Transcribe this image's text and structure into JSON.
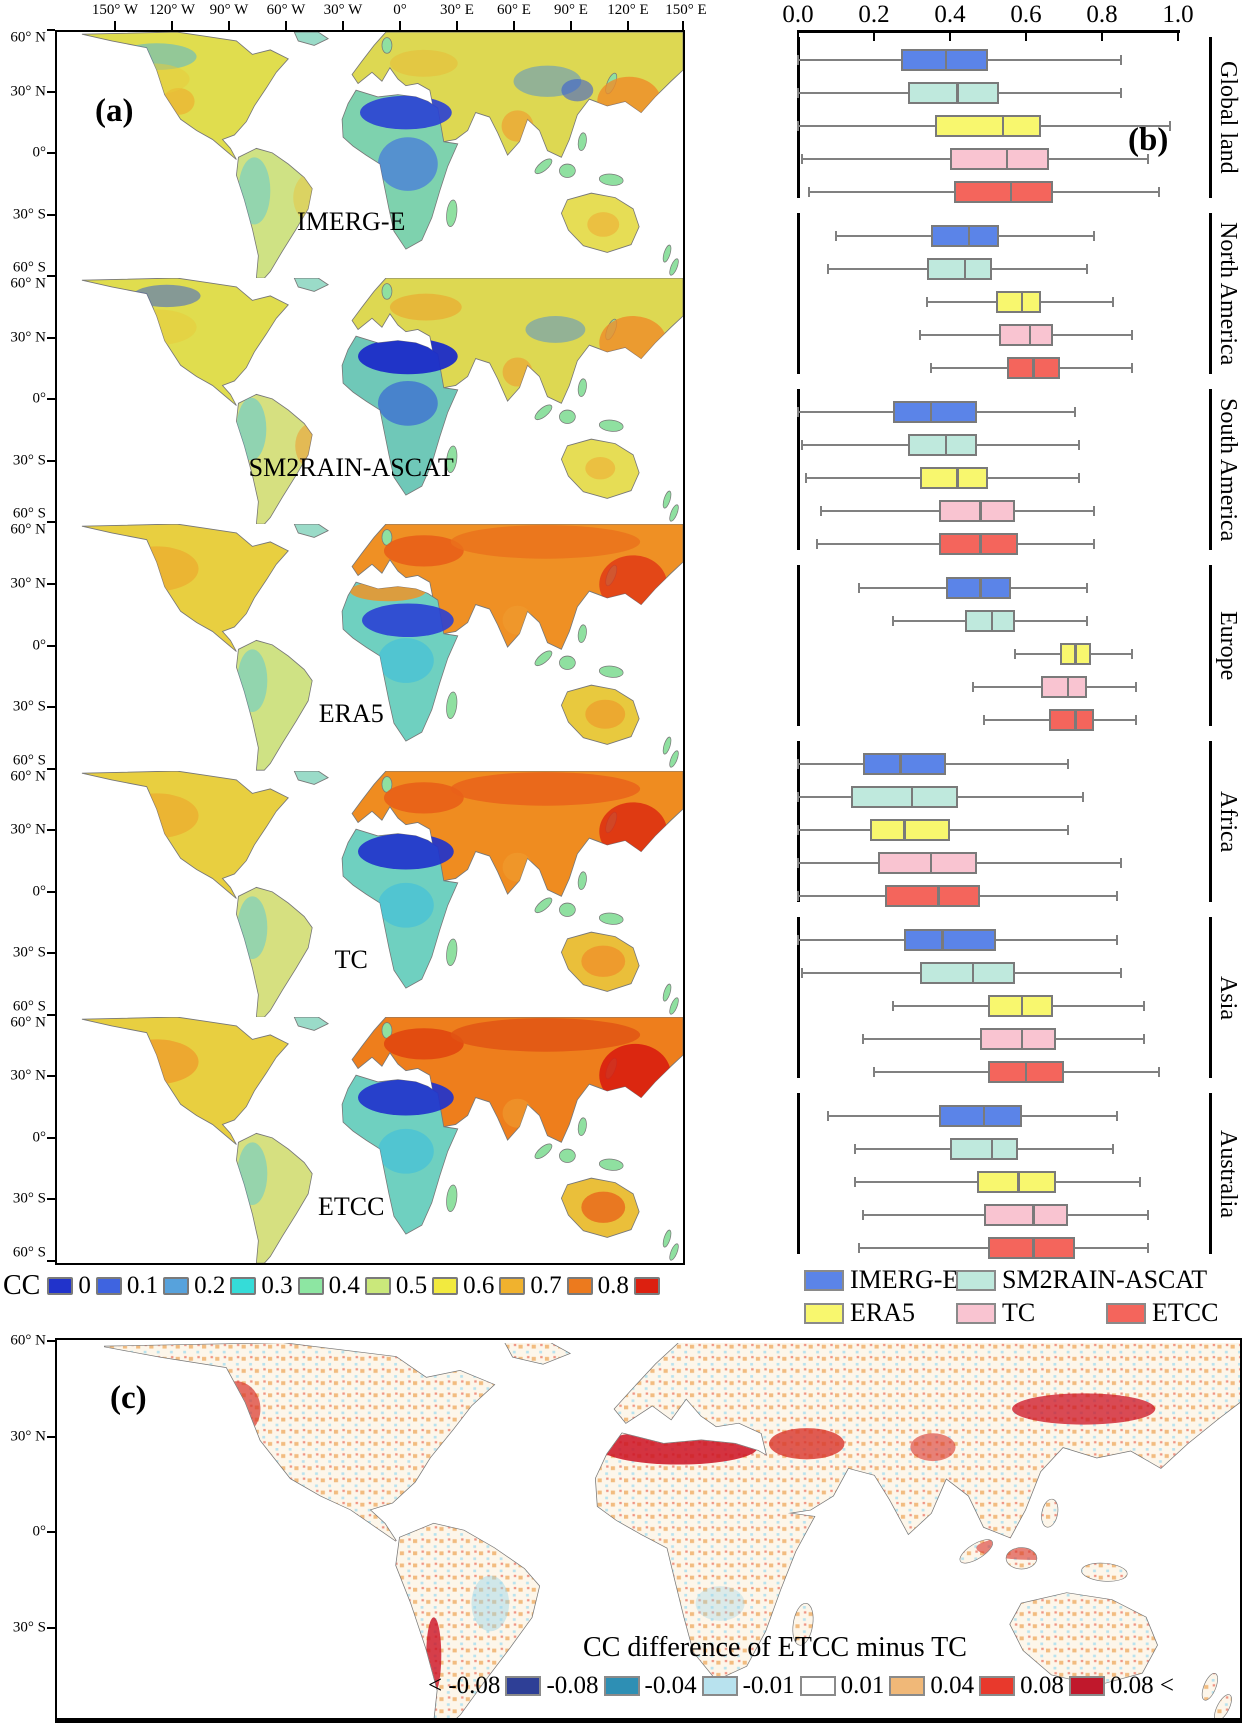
{
  "figure": {
    "panel_a_label": "(a)",
    "panel_b_label": "(b)",
    "panel_c_label": "(c)",
    "lon_labels": [
      "150° W",
      "120° W",
      "90° W",
      "60° W",
      "30° W",
      "0°",
      "30° E",
      "60° E",
      "90° E",
      "120° E",
      "150° E"
    ],
    "lat_labels": [
      "60° N",
      "30° N",
      "0°",
      "30° S",
      "60° S"
    ],
    "maps": [
      {
        "label": "IMERG-E"
      },
      {
        "label": "SM2RAIN-ASCAT"
      },
      {
        "label": "ERA5"
      },
      {
        "label": "TC"
      },
      {
        "label": "ETCC"
      }
    ],
    "cc_legend": {
      "label": "CC",
      "entries": [
        {
          "value": "0",
          "color": "#2133cb"
        },
        {
          "value": "0.1",
          "color": "#3f64e0"
        },
        {
          "value": "0.2",
          "color": "#57a2dc"
        },
        {
          "value": "0.3",
          "color": "#35dcd8"
        },
        {
          "value": "0.4",
          "color": "#8de6a2"
        },
        {
          "value": "0.5",
          "color": "#cae87b"
        },
        {
          "value": "0.6",
          "color": "#f2ea3f"
        },
        {
          "value": "0.7",
          "color": "#f0b22e"
        },
        {
          "value": "0.8",
          "color": "#ec7a1e"
        },
        {
          "value": "",
          "color": "#dc2010"
        }
      ]
    },
    "panel_c": {
      "title": "CC difference of ETCC minus TC",
      "lat_labels": [
        "60° N",
        "30° N",
        "0°",
        "30° S"
      ],
      "legend": [
        {
          "text": "< -0.08",
          "color": "#2e3f96"
        },
        {
          "text": "-0.08",
          "color": "#2e8fb4"
        },
        {
          "text": "-0.04",
          "color": "#b8e2ee"
        },
        {
          "text": "-0.01",
          "color": "#ffffff"
        },
        {
          "text": "0.01",
          "color": "#f0b878"
        },
        {
          "text": "0.04",
          "color": "#e8392c"
        },
        {
          "text": "0.08",
          "color": "#c0182c"
        },
        {
          "text": "0.08 <",
          "color": null
        }
      ]
    }
  },
  "chart_data": {
    "type": "boxplot",
    "orientation": "horizontal",
    "x_axis": {
      "range": [
        0,
        1
      ],
      "ticks": [
        "0.0",
        "0.2",
        "0.4",
        "0.6",
        "0.8",
        "1.0"
      ]
    },
    "box_format": [
      "whisker_low",
      "q1",
      "median",
      "q3",
      "whisker_high"
    ],
    "series": [
      {
        "name": "IMERG-E",
        "color": "#5b84e8"
      },
      {
        "name": "SM2RAIN-ASCAT",
        "color": "#bfe9dd"
      },
      {
        "name": "ERA5",
        "color": "#f8f76e"
      },
      {
        "name": "TC",
        "color": "#f9c4d1"
      },
      {
        "name": "ETCC",
        "color": "#f4655c"
      }
    ],
    "regions": [
      {
        "name": "Global land",
        "boxes": [
          [
            0.0,
            0.27,
            0.39,
            0.5,
            0.85
          ],
          [
            0.0,
            0.29,
            0.42,
            0.53,
            0.85
          ],
          [
            0.0,
            0.36,
            0.54,
            0.64,
            0.98
          ],
          [
            0.01,
            0.4,
            0.55,
            0.66,
            0.92
          ],
          [
            0.03,
            0.41,
            0.56,
            0.67,
            0.95
          ]
        ]
      },
      {
        "name": "North America",
        "boxes": [
          [
            0.1,
            0.35,
            0.45,
            0.53,
            0.78
          ],
          [
            0.08,
            0.34,
            0.44,
            0.51,
            0.76
          ],
          [
            0.34,
            0.52,
            0.59,
            0.64,
            0.83
          ],
          [
            0.32,
            0.53,
            0.61,
            0.67,
            0.88
          ],
          [
            0.35,
            0.55,
            0.62,
            0.69,
            0.88
          ]
        ]
      },
      {
        "name": "South America",
        "boxes": [
          [
            0.0,
            0.25,
            0.35,
            0.47,
            0.73
          ],
          [
            0.01,
            0.29,
            0.39,
            0.47,
            0.74
          ],
          [
            0.02,
            0.32,
            0.42,
            0.5,
            0.74
          ],
          [
            0.06,
            0.37,
            0.48,
            0.57,
            0.78
          ],
          [
            0.05,
            0.37,
            0.48,
            0.58,
            0.78
          ]
        ]
      },
      {
        "name": "Europe",
        "boxes": [
          [
            0.16,
            0.39,
            0.48,
            0.56,
            0.76
          ],
          [
            0.25,
            0.44,
            0.51,
            0.57,
            0.76
          ],
          [
            0.57,
            0.69,
            0.73,
            0.77,
            0.88
          ],
          [
            0.46,
            0.64,
            0.71,
            0.76,
            0.89
          ],
          [
            0.49,
            0.66,
            0.73,
            0.78,
            0.89
          ]
        ]
      },
      {
        "name": "Africa",
        "boxes": [
          [
            0.0,
            0.17,
            0.27,
            0.39,
            0.71
          ],
          [
            0.0,
            0.14,
            0.3,
            0.42,
            0.75
          ],
          [
            0.0,
            0.19,
            0.28,
            0.4,
            0.71
          ],
          [
            0.0,
            0.21,
            0.35,
            0.47,
            0.85
          ],
          [
            0.0,
            0.23,
            0.37,
            0.48,
            0.84
          ]
        ]
      },
      {
        "name": "Asia",
        "boxes": [
          [
            0.0,
            0.28,
            0.38,
            0.52,
            0.84
          ],
          [
            0.01,
            0.32,
            0.46,
            0.57,
            0.85
          ],
          [
            0.25,
            0.5,
            0.59,
            0.67,
            0.91
          ],
          [
            0.17,
            0.48,
            0.59,
            0.68,
            0.91
          ],
          [
            0.2,
            0.5,
            0.6,
            0.7,
            0.95
          ]
        ]
      },
      {
        "name": "Australia",
        "boxes": [
          [
            0.08,
            0.37,
            0.49,
            0.59,
            0.84
          ],
          [
            0.15,
            0.4,
            0.51,
            0.58,
            0.83
          ],
          [
            0.15,
            0.47,
            0.58,
            0.68,
            0.9
          ],
          [
            0.17,
            0.49,
            0.62,
            0.71,
            0.92
          ],
          [
            0.16,
            0.5,
            0.62,
            0.73,
            0.92
          ]
        ]
      }
    ]
  }
}
